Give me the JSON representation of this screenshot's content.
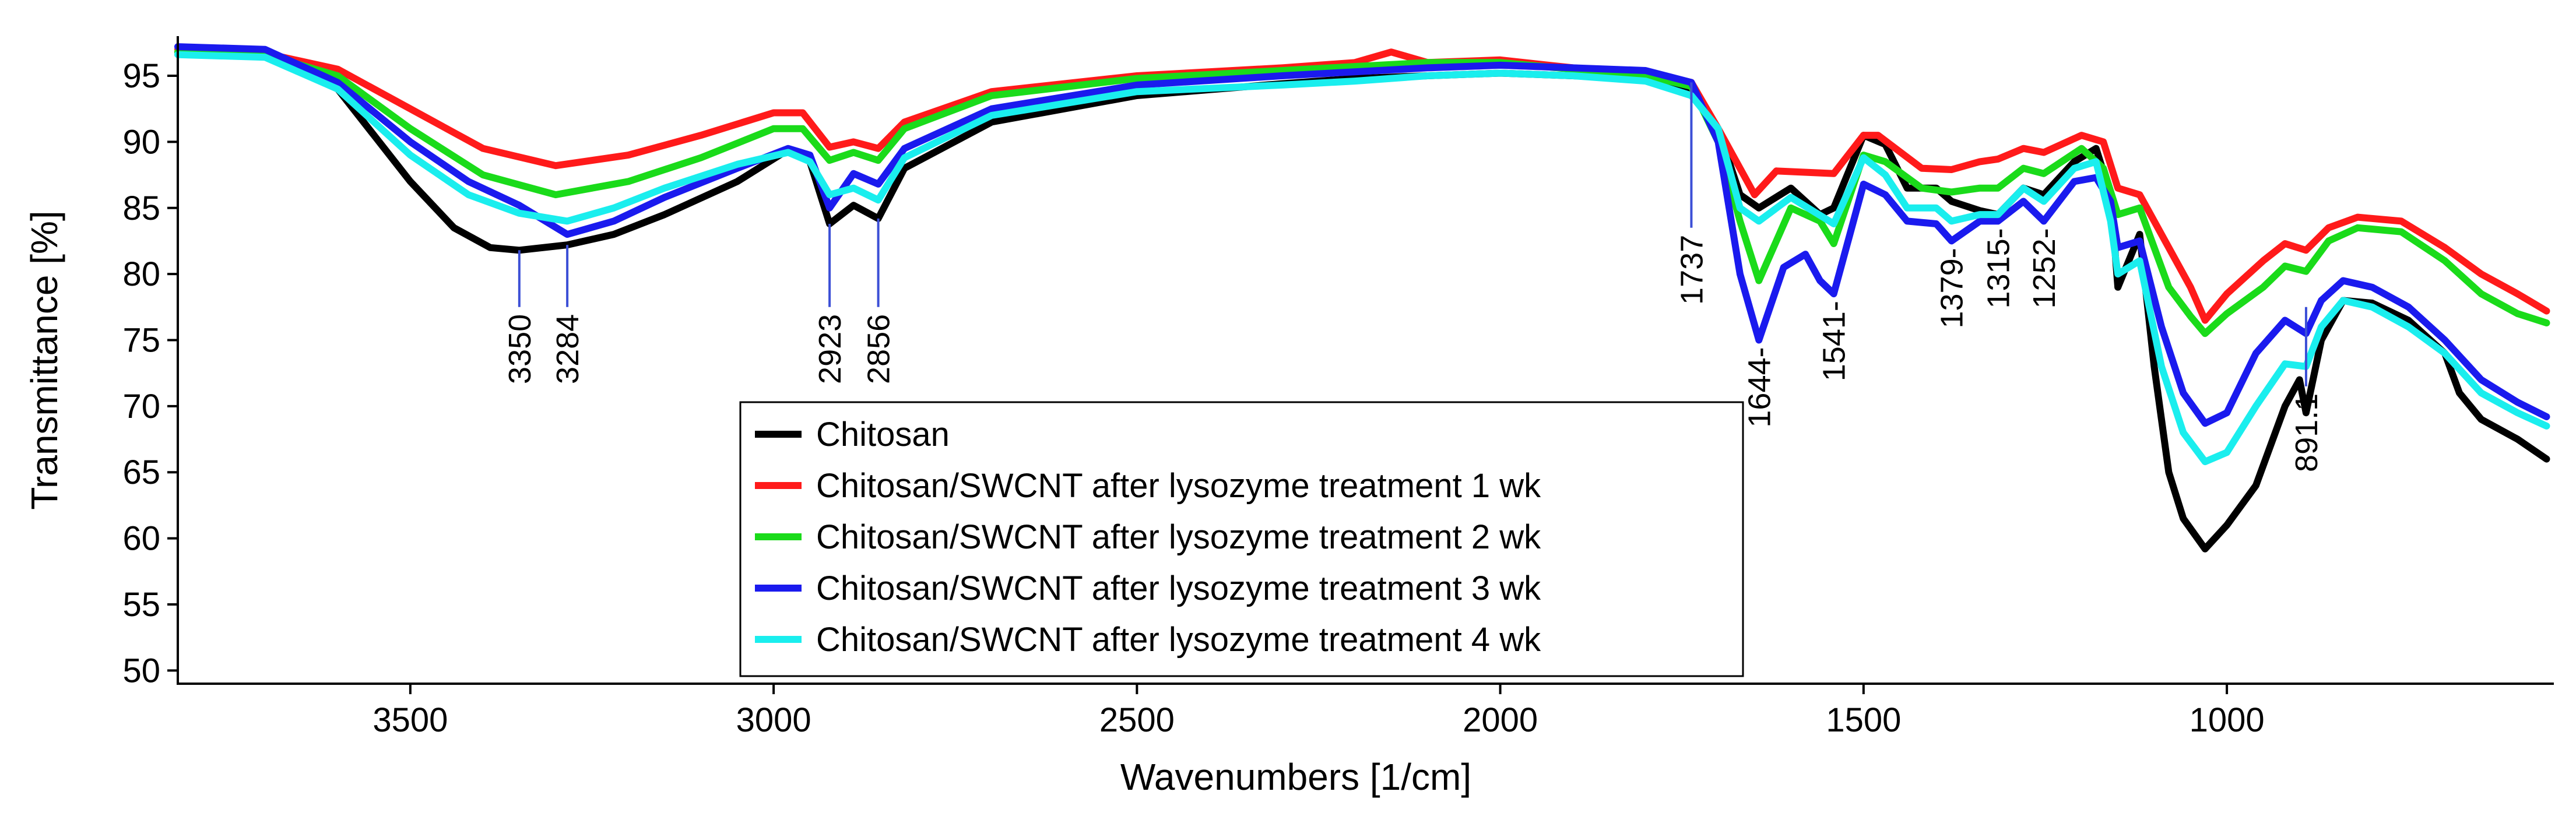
{
  "chart_data": {
    "type": "line",
    "title": "",
    "xlabel": "Wavenumbers [1/cm]",
    "ylabel": "Transmittance [%]",
    "xlim": [
      3820,
      550
    ],
    "ylim": [
      49,
      98
    ],
    "x_ticks": [
      3500,
      3000,
      2500,
      2000,
      1500,
      1000
    ],
    "x_tick_labels": [
      "3500",
      "3000",
      "2500",
      "2000",
      "1500",
      "1000"
    ],
    "y_ticks": [
      50,
      55,
      60,
      65,
      70,
      75,
      80,
      85,
      90,
      95
    ],
    "y_tick_labels": [
      "50",
      "55",
      "60",
      "65",
      "70",
      "75",
      "80",
      "85",
      "90",
      "95"
    ],
    "legend_position": "bottom-center",
    "series": [
      {
        "name": "Chitosan",
        "color": "#000000",
        "points": [
          [
            3820,
            96.8
          ],
          [
            3700,
            96.6
          ],
          [
            3600,
            94
          ],
          [
            3500,
            87
          ],
          [
            3440,
            83.5
          ],
          [
            3390,
            82
          ],
          [
            3350,
            81.8
          ],
          [
            3284,
            82.2
          ],
          [
            3220,
            83
          ],
          [
            3150,
            84.5
          ],
          [
            3050,
            87
          ],
          [
            2980,
            89.4
          ],
          [
            2950,
            88.5
          ],
          [
            2923,
            83.8
          ],
          [
            2890,
            85.2
          ],
          [
            2856,
            84.2
          ],
          [
            2820,
            88
          ],
          [
            2700,
            91.5
          ],
          [
            2500,
            93.5
          ],
          [
            2300,
            94.4
          ],
          [
            2200,
            94.8
          ],
          [
            2100,
            95
          ],
          [
            2000,
            95.2
          ],
          [
            1900,
            95
          ],
          [
            1800,
            94.8
          ],
          [
            1737,
            93.8
          ],
          [
            1700,
            91
          ],
          [
            1670,
            86
          ],
          [
            1644,
            85
          ],
          [
            1600,
            86.5
          ],
          [
            1560,
            84.5
          ],
          [
            1541,
            85
          ],
          [
            1500,
            90.5
          ],
          [
            1470,
            89.8
          ],
          [
            1440,
            86.5
          ],
          [
            1400,
            86.5
          ],
          [
            1379,
            85.5
          ],
          [
            1340,
            84.8
          ],
          [
            1315,
            84.5
          ],
          [
            1280,
            86.5
          ],
          [
            1252,
            86
          ],
          [
            1210,
            88.5
          ],
          [
            1180,
            89.5
          ],
          [
            1160,
            86
          ],
          [
            1150,
            79
          ],
          [
            1120,
            83
          ],
          [
            1100,
            73
          ],
          [
            1080,
            65
          ],
          [
            1060,
            61.5
          ],
          [
            1030,
            59.2
          ],
          [
            1000,
            61
          ],
          [
            960,
            64
          ],
          [
            920,
            70
          ],
          [
            900,
            72
          ],
          [
            891,
            69.5
          ],
          [
            870,
            75
          ],
          [
            840,
            78
          ],
          [
            800,
            77.8
          ],
          [
            750,
            76.5
          ],
          [
            700,
            74
          ],
          [
            680,
            71
          ],
          [
            650,
            69
          ],
          [
            600,
            67.5
          ],
          [
            560,
            66
          ]
        ]
      },
      {
        "name": "Chitosan/SWCNT after lysozyme treatment 1 wk",
        "color": "#ff1a1a",
        "points": [
          [
            3820,
            97
          ],
          [
            3700,
            96.7
          ],
          [
            3600,
            95.5
          ],
          [
            3500,
            92.5
          ],
          [
            3400,
            89.5
          ],
          [
            3300,
            88.2
          ],
          [
            3200,
            89
          ],
          [
            3100,
            90.5
          ],
          [
            3000,
            92.2
          ],
          [
            2960,
            92.2
          ],
          [
            2923,
            89.6
          ],
          [
            2890,
            90
          ],
          [
            2856,
            89.5
          ],
          [
            2820,
            91.5
          ],
          [
            2700,
            93.8
          ],
          [
            2500,
            95
          ],
          [
            2300,
            95.6
          ],
          [
            2200,
            96
          ],
          [
            2150,
            96.8
          ],
          [
            2100,
            96
          ],
          [
            2000,
            96.2
          ],
          [
            1900,
            95.6
          ],
          [
            1800,
            95.2
          ],
          [
            1737,
            94.5
          ],
          [
            1700,
            91
          ],
          [
            1650,
            86
          ],
          [
            1620,
            87.8
          ],
          [
            1541,
            87.6
          ],
          [
            1500,
            90.5
          ],
          [
            1480,
            90.5
          ],
          [
            1420,
            88
          ],
          [
            1379,
            87.9
          ],
          [
            1340,
            88.5
          ],
          [
            1315,
            88.7
          ],
          [
            1280,
            89.5
          ],
          [
            1252,
            89.2
          ],
          [
            1200,
            90.5
          ],
          [
            1170,
            90
          ],
          [
            1150,
            86.5
          ],
          [
            1120,
            86
          ],
          [
            1080,
            82
          ],
          [
            1050,
            79
          ],
          [
            1030,
            76.5
          ],
          [
            1000,
            78.5
          ],
          [
            950,
            81
          ],
          [
            920,
            82.3
          ],
          [
            891,
            81.8
          ],
          [
            860,
            83.5
          ],
          [
            820,
            84.3
          ],
          [
            760,
            84
          ],
          [
            700,
            82
          ],
          [
            650,
            80
          ],
          [
            600,
            78.5
          ],
          [
            560,
            77.2
          ]
        ]
      },
      {
        "name": "Chitosan/SWCNT after lysozyme treatment 2 wk",
        "color": "#1adb1a",
        "points": [
          [
            3820,
            96.8
          ],
          [
            3700,
            96.6
          ],
          [
            3600,
            95
          ],
          [
            3500,
            91
          ],
          [
            3400,
            87.5
          ],
          [
            3300,
            86
          ],
          [
            3200,
            87
          ],
          [
            3100,
            88.8
          ],
          [
            3000,
            91
          ],
          [
            2960,
            91
          ],
          [
            2923,
            88.6
          ],
          [
            2890,
            89.2
          ],
          [
            2856,
            88.6
          ],
          [
            2820,
            91
          ],
          [
            2700,
            93.5
          ],
          [
            2500,
            94.8
          ],
          [
            2300,
            95.4
          ],
          [
            2200,
            95.7
          ],
          [
            2100,
            96
          ],
          [
            2000,
            96
          ],
          [
            1900,
            95.5
          ],
          [
            1800,
            95
          ],
          [
            1737,
            94.2
          ],
          [
            1700,
            90
          ],
          [
            1670,
            84
          ],
          [
            1644,
            79.5
          ],
          [
            1600,
            85
          ],
          [
            1560,
            84
          ],
          [
            1541,
            82.3
          ],
          [
            1500,
            89
          ],
          [
            1470,
            88.5
          ],
          [
            1420,
            86.5
          ],
          [
            1379,
            86.2
          ],
          [
            1340,
            86.5
          ],
          [
            1315,
            86.5
          ],
          [
            1280,
            88
          ],
          [
            1252,
            87.6
          ],
          [
            1200,
            89.5
          ],
          [
            1170,
            88
          ],
          [
            1150,
            84.5
          ],
          [
            1120,
            85
          ],
          [
            1080,
            79
          ],
          [
            1050,
            76.8
          ],
          [
            1030,
            75.5
          ],
          [
            1000,
            77
          ],
          [
            950,
            79
          ],
          [
            920,
            80.6
          ],
          [
            891,
            80.2
          ],
          [
            860,
            82.5
          ],
          [
            820,
            83.5
          ],
          [
            760,
            83.2
          ],
          [
            700,
            81
          ],
          [
            650,
            78.5
          ],
          [
            600,
            77
          ],
          [
            560,
            76.3
          ]
        ]
      },
      {
        "name": "Chitosan/SWCNT after lysozyme treatment 3 wk",
        "color": "#1a1aee",
        "points": [
          [
            3820,
            97.2
          ],
          [
            3700,
            97
          ],
          [
            3600,
            94.5
          ],
          [
            3500,
            90
          ],
          [
            3420,
            87
          ],
          [
            3350,
            85.2
          ],
          [
            3284,
            83
          ],
          [
            3220,
            84
          ],
          [
            3150,
            85.8
          ],
          [
            3050,
            88
          ],
          [
            2980,
            89.5
          ],
          [
            2950,
            89
          ],
          [
            2923,
            85
          ],
          [
            2890,
            87.6
          ],
          [
            2856,
            86.8
          ],
          [
            2820,
            89.5
          ],
          [
            2700,
            92.5
          ],
          [
            2500,
            94.3
          ],
          [
            2300,
            95
          ],
          [
            2200,
            95.3
          ],
          [
            2100,
            95.6
          ],
          [
            2000,
            95.8
          ],
          [
            1900,
            95.6
          ],
          [
            1800,
            95.4
          ],
          [
            1737,
            94.5
          ],
          [
            1700,
            90
          ],
          [
            1670,
            80
          ],
          [
            1644,
            75
          ],
          [
            1610,
            80.5
          ],
          [
            1580,
            81.5
          ],
          [
            1560,
            79.5
          ],
          [
            1541,
            78.5
          ],
          [
            1500,
            86.8
          ],
          [
            1470,
            86
          ],
          [
            1440,
            84
          ],
          [
            1400,
            83.8
          ],
          [
            1379,
            82.5
          ],
          [
            1340,
            84
          ],
          [
            1315,
            84
          ],
          [
            1280,
            85.5
          ],
          [
            1252,
            84
          ],
          [
            1210,
            87
          ],
          [
            1180,
            87.3
          ],
          [
            1160,
            85.5
          ],
          [
            1150,
            82
          ],
          [
            1120,
            82.5
          ],
          [
            1090,
            76
          ],
          [
            1060,
            71
          ],
          [
            1030,
            68.7
          ],
          [
            1000,
            69.5
          ],
          [
            960,
            74
          ],
          [
            920,
            76.5
          ],
          [
            891,
            75.5
          ],
          [
            870,
            78
          ],
          [
            840,
            79.5
          ],
          [
            800,
            79
          ],
          [
            750,
            77.5
          ],
          [
            700,
            75
          ],
          [
            650,
            72
          ],
          [
            600,
            70.3
          ],
          [
            560,
            69.2
          ]
        ]
      },
      {
        "name": "Chitosan/SWCNT after lysozyme treatment 4 wk",
        "color": "#1aeeee",
        "points": [
          [
            3820,
            96.6
          ],
          [
            3700,
            96.4
          ],
          [
            3600,
            94
          ],
          [
            3500,
            89
          ],
          [
            3420,
            86
          ],
          [
            3350,
            84.6
          ],
          [
            3284,
            84
          ],
          [
            3220,
            85
          ],
          [
            3150,
            86.5
          ],
          [
            3050,
            88.3
          ],
          [
            2980,
            89.2
          ],
          [
            2950,
            88.5
          ],
          [
            2923,
            86
          ],
          [
            2890,
            86.5
          ],
          [
            2856,
            85.6
          ],
          [
            2820,
            88.8
          ],
          [
            2700,
            92
          ],
          [
            2500,
            93.8
          ],
          [
            2300,
            94.3
          ],
          [
            2200,
            94.6
          ],
          [
            2100,
            95
          ],
          [
            2000,
            95.2
          ],
          [
            1900,
            95
          ],
          [
            1800,
            94.6
          ],
          [
            1737,
            93.5
          ],
          [
            1700,
            91
          ],
          [
            1670,
            85
          ],
          [
            1644,
            84
          ],
          [
            1600,
            85.8
          ],
          [
            1541,
            83.8
          ],
          [
            1500,
            88.8
          ],
          [
            1470,
            87.5
          ],
          [
            1440,
            85
          ],
          [
            1400,
            85
          ],
          [
            1379,
            84
          ],
          [
            1340,
            84.5
          ],
          [
            1315,
            84.5
          ],
          [
            1280,
            86.5
          ],
          [
            1252,
            85.5
          ],
          [
            1210,
            88
          ],
          [
            1180,
            88.5
          ],
          [
            1160,
            84
          ],
          [
            1150,
            80
          ],
          [
            1120,
            81
          ],
          [
            1090,
            73
          ],
          [
            1060,
            68
          ],
          [
            1030,
            65.8
          ],
          [
            1000,
            66.5
          ],
          [
            960,
            70
          ],
          [
            920,
            73.2
          ],
          [
            891,
            73
          ],
          [
            870,
            76
          ],
          [
            840,
            78
          ],
          [
            800,
            77.5
          ],
          [
            750,
            76
          ],
          [
            700,
            74
          ],
          [
            650,
            71
          ],
          [
            600,
            69.5
          ],
          [
            560,
            68.5
          ]
        ]
      }
    ],
    "annotations": [
      {
        "label": "3350",
        "x": 3350,
        "y_from": 81.8,
        "y_to": 77.5
      },
      {
        "label": "3284",
        "x": 3284,
        "y_from": 82.2,
        "y_to": 77.5
      },
      {
        "label": "2923",
        "x": 2923,
        "y_from": 83.8,
        "y_to": 77.5
      },
      {
        "label": "2856",
        "x": 2856,
        "y_from": 84.2,
        "y_to": 77.5
      },
      {
        "label": "1737",
        "x": 1737,
        "y_from": 94.5,
        "y_to": 83.5
      },
      {
        "label": "1644-",
        "x": 1644,
        "y_from": 75,
        "y_to": 75
      },
      {
        "label": "1541-",
        "x": 1541,
        "y_from": 78.5,
        "y_to": 78.5
      },
      {
        "label": "1379-",
        "x": 1379,
        "y_from": 82.5,
        "y_to": 82.5
      },
      {
        "label": "1315-",
        "x": 1315,
        "y_from": 84,
        "y_to": 84
      },
      {
        "label": "1252-",
        "x": 1252,
        "y_from": 84,
        "y_to": 84
      },
      {
        "label": "891.1",
        "x": 891,
        "y_from": 77.5,
        "y_to": 71.5
      }
    ]
  }
}
